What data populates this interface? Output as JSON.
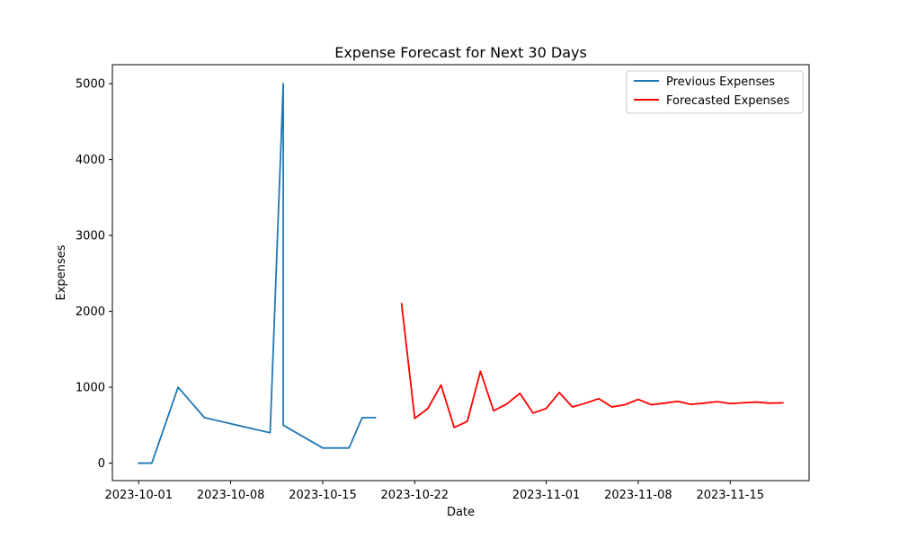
{
  "chart_data": {
    "type": "line",
    "title": "Expense Forecast for Next 30 Days",
    "xlabel": "Date",
    "ylabel": "Expenses",
    "x_type": "date",
    "xlim": [
      "2023-09-29",
      "2023-11-21"
    ],
    "ylim": [
      -230,
      5250
    ],
    "x_ticks": [
      "2023-10-01",
      "2023-10-08",
      "2023-10-15",
      "2023-10-22",
      "2023-11-01",
      "2023-11-08",
      "2023-11-15"
    ],
    "y_ticks": [
      0,
      1000,
      2000,
      3000,
      4000,
      5000
    ],
    "grid": false,
    "legend_position": "upper right",
    "series": [
      {
        "name": "Previous Expenses",
        "color": "#1f77b4",
        "points": [
          {
            "x": "2023-10-01",
            "y": 0
          },
          {
            "x": "2023-10-02",
            "y": 0
          },
          {
            "x": "2023-10-04",
            "y": 1000
          },
          {
            "x": "2023-10-06",
            "y": 600
          },
          {
            "x": "2023-10-11",
            "y": 400
          },
          {
            "x": "2023-10-12",
            "y": 5000
          },
          {
            "x": "2023-10-12",
            "y": 500
          },
          {
            "x": "2023-10-15",
            "y": 200
          },
          {
            "x": "2023-10-17",
            "y": 200
          },
          {
            "x": "2023-10-18",
            "y": 600
          },
          {
            "x": "2023-10-19",
            "y": 600
          }
        ]
      },
      {
        "name": "Forecasted Expenses",
        "color": "#ff0000",
        "points": [
          {
            "x": "2023-10-21",
            "y": 2100
          },
          {
            "x": "2023-10-22",
            "y": 590
          },
          {
            "x": "2023-10-23",
            "y": 720
          },
          {
            "x": "2023-10-24",
            "y": 1030
          },
          {
            "x": "2023-10-25",
            "y": 470
          },
          {
            "x": "2023-10-26",
            "y": 550
          },
          {
            "x": "2023-10-27",
            "y": 1210
          },
          {
            "x": "2023-10-28",
            "y": 690
          },
          {
            "x": "2023-10-29",
            "y": 780
          },
          {
            "x": "2023-10-30",
            "y": 920
          },
          {
            "x": "2023-10-31",
            "y": 660
          },
          {
            "x": "2023-11-01",
            "y": 720
          },
          {
            "x": "2023-11-02",
            "y": 930
          },
          {
            "x": "2023-11-03",
            "y": 740
          },
          {
            "x": "2023-11-04",
            "y": 790
          },
          {
            "x": "2023-11-05",
            "y": 850
          },
          {
            "x": "2023-11-06",
            "y": 740
          },
          {
            "x": "2023-11-07",
            "y": 770
          },
          {
            "x": "2023-11-08",
            "y": 840
          },
          {
            "x": "2023-11-09",
            "y": 770
          },
          {
            "x": "2023-11-10",
            "y": 790
          },
          {
            "x": "2023-11-11",
            "y": 815
          },
          {
            "x": "2023-11-12",
            "y": 775
          },
          {
            "x": "2023-11-13",
            "y": 790
          },
          {
            "x": "2023-11-14",
            "y": 810
          },
          {
            "x": "2023-11-15",
            "y": 785
          },
          {
            "x": "2023-11-16",
            "y": 795
          },
          {
            "x": "2023-11-17",
            "y": 805
          },
          {
            "x": "2023-11-18",
            "y": 790
          },
          {
            "x": "2023-11-19",
            "y": 795
          }
        ]
      }
    ]
  }
}
